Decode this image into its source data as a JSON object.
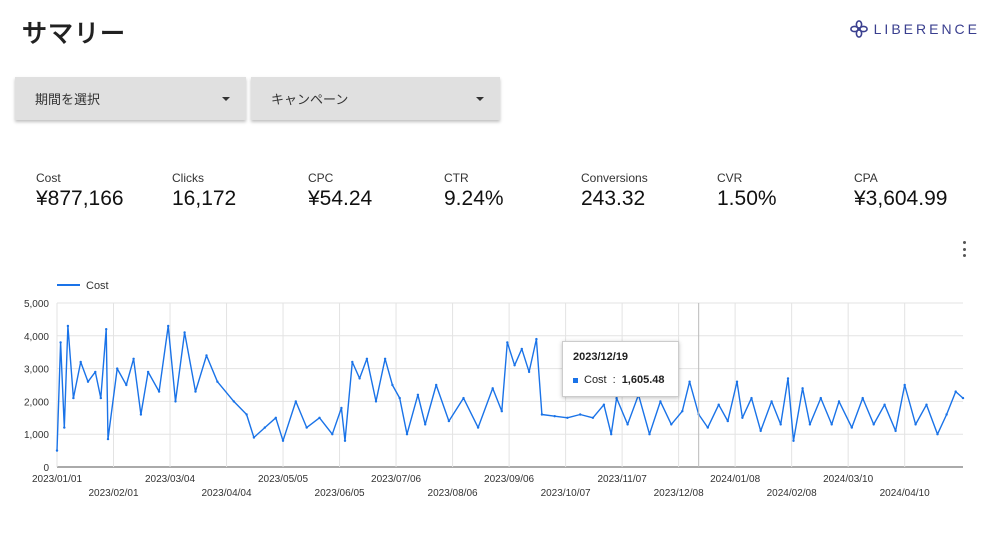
{
  "page": {
    "title": "サマリー"
  },
  "brand": {
    "name": "LIBERENCE",
    "color": "#3a3f8f",
    "icon": "flower-logo-icon"
  },
  "filters": {
    "period": {
      "label": "期間を選択"
    },
    "campaign": {
      "label": "キャンペーン"
    }
  },
  "kpis": [
    {
      "label": "Cost",
      "value": "¥877,166"
    },
    {
      "label": "Clicks",
      "value": "16,172"
    },
    {
      "label": "CPC",
      "value": "¥54.24"
    },
    {
      "label": "CTR",
      "value": "9.24%"
    },
    {
      "label": "Conversions",
      "value": "243.32"
    },
    {
      "label": "CVR",
      "value": "1.50%"
    },
    {
      "label": "CPA",
      "value": "¥3,604.99"
    }
  ],
  "menu": {
    "icon": "more-vert-icon"
  },
  "tooltip": {
    "date": "2023/12/19",
    "series": "Cost",
    "value": "1,605.48"
  },
  "chart_data": {
    "type": "line",
    "legend": "top-left",
    "grid": true,
    "series": [
      {
        "name": "Cost",
        "color": "#1a73e8",
        "anchors": [
          [
            "2023/01/01",
            500
          ],
          [
            "2023/01/03",
            3800
          ],
          [
            "2023/01/05",
            1200
          ],
          [
            "2023/01/07",
            4300
          ],
          [
            "2023/01/10",
            2100
          ],
          [
            "2023/01/14",
            3200
          ],
          [
            "2023/01/18",
            2600
          ],
          [
            "2023/01/22",
            2900
          ],
          [
            "2023/01/25",
            2100
          ],
          [
            "2023/01/28",
            4200
          ],
          [
            "2023/01/29",
            850
          ],
          [
            "2023/02/03",
            3000
          ],
          [
            "2023/02/08",
            2500
          ],
          [
            "2023/02/12",
            3300
          ],
          [
            "2023/02/16",
            1600
          ],
          [
            "2023/02/20",
            2900
          ],
          [
            "2023/02/26",
            2300
          ],
          [
            "2023/03/03",
            4300
          ],
          [
            "2023/03/07",
            2000
          ],
          [
            "2023/03/12",
            4100
          ],
          [
            "2023/03/18",
            2300
          ],
          [
            "2023/03/24",
            3400
          ],
          [
            "2023/03/30",
            2600
          ],
          [
            "2023/04/08",
            2000
          ],
          [
            "2023/04/15",
            1600
          ],
          [
            "2023/04/19",
            900
          ],
          [
            "2023/04/25",
            1200
          ],
          [
            "2023/05/01",
            1500
          ],
          [
            "2023/05/05",
            800
          ],
          [
            "2023/05/12",
            2000
          ],
          [
            "2023/05/18",
            1200
          ],
          [
            "2023/05/25",
            1500
          ],
          [
            "2023/06/01",
            1000
          ],
          [
            "2023/06/06",
            1800
          ],
          [
            "2023/06/08",
            800
          ],
          [
            "2023/06/12",
            3200
          ],
          [
            "2023/06/16",
            2700
          ],
          [
            "2023/06/20",
            3300
          ],
          [
            "2023/06/25",
            2000
          ],
          [
            "2023/06/30",
            3300
          ],
          [
            "2023/07/04",
            2500
          ],
          [
            "2023/07/08",
            2100
          ],
          [
            "2023/07/12",
            1000
          ],
          [
            "2023/07/18",
            2200
          ],
          [
            "2023/07/22",
            1300
          ],
          [
            "2023/07/28",
            2500
          ],
          [
            "2023/08/04",
            1400
          ],
          [
            "2023/08/12",
            2100
          ],
          [
            "2023/08/20",
            1200
          ],
          [
            "2023/08/28",
            2400
          ],
          [
            "2023/09/02",
            1700
          ],
          [
            "2023/09/05",
            3800
          ],
          [
            "2023/09/09",
            3100
          ],
          [
            "2023/09/13",
            3600
          ],
          [
            "2023/09/17",
            2900
          ],
          [
            "2023/09/21",
            3900
          ],
          [
            "2023/09/24",
            1600
          ],
          [
            "2023/10/01",
            1550
          ],
          [
            "2023/10/08",
            1500
          ],
          [
            "2023/10/15",
            1600
          ],
          [
            "2023/10/22",
            1500
          ],
          [
            "2023/10/28",
            1900
          ],
          [
            "2023/11/01",
            1000
          ],
          [
            "2023/11/04",
            2100
          ],
          [
            "2023/11/10",
            1300
          ],
          [
            "2023/11/16",
            2200
          ],
          [
            "2023/11/22",
            1000
          ],
          [
            "2023/11/28",
            2000
          ],
          [
            "2023/12/04",
            1300
          ],
          [
            "2023/12/10",
            1700
          ],
          [
            "2023/12/14",
            2600
          ],
          [
            "2023/12/19",
            1605
          ],
          [
            "2023/12/24",
            1200
          ],
          [
            "2023/12/30",
            1900
          ],
          [
            "2024/01/04",
            1400
          ],
          [
            "2024/01/09",
            2600
          ],
          [
            "2024/01/12",
            1500
          ],
          [
            "2024/01/17",
            2100
          ],
          [
            "2024/01/22",
            1100
          ],
          [
            "2024/01/28",
            2000
          ],
          [
            "2024/02/02",
            1300
          ],
          [
            "2024/02/06",
            2700
          ],
          [
            "2024/02/09",
            800
          ],
          [
            "2024/02/14",
            2400
          ],
          [
            "2024/02/18",
            1300
          ],
          [
            "2024/02/24",
            2100
          ],
          [
            "2024/03/01",
            1300
          ],
          [
            "2024/03/05",
            2000
          ],
          [
            "2024/03/12",
            1200
          ],
          [
            "2024/03/18",
            2100
          ],
          [
            "2024/03/24",
            1300
          ],
          [
            "2024/03/30",
            1900
          ],
          [
            "2024/04/05",
            1100
          ],
          [
            "2024/04/10",
            2500
          ],
          [
            "2024/04/16",
            1300
          ],
          [
            "2024/04/22",
            1900
          ],
          [
            "2024/04/28",
            1000
          ],
          [
            "2024/05/03",
            1600
          ],
          [
            "2024/05/08",
            2300
          ],
          [
            "2024/05/12",
            2100
          ]
        ]
      }
    ],
    "x_start": "2023/01/01",
    "x_end": "2024/05/12",
    "ylim": [
      0,
      5000
    ],
    "y_ticks": [
      "0",
      "1,000",
      "2,000",
      "3,000",
      "4,000",
      "5,000"
    ],
    "x_ticks_top": [
      "2023/01/01",
      "2023/03/04",
      "2023/05/05",
      "2023/07/06",
      "2023/09/06",
      "2023/11/07",
      "2024/01/08",
      "2024/03/10"
    ],
    "x_ticks_bottom": [
      "2023/02/01",
      "2023/04/04",
      "2023/06/05",
      "2023/08/06",
      "2023/10/07",
      "2023/12/08",
      "2024/02/08",
      "2024/04/10"
    ]
  }
}
